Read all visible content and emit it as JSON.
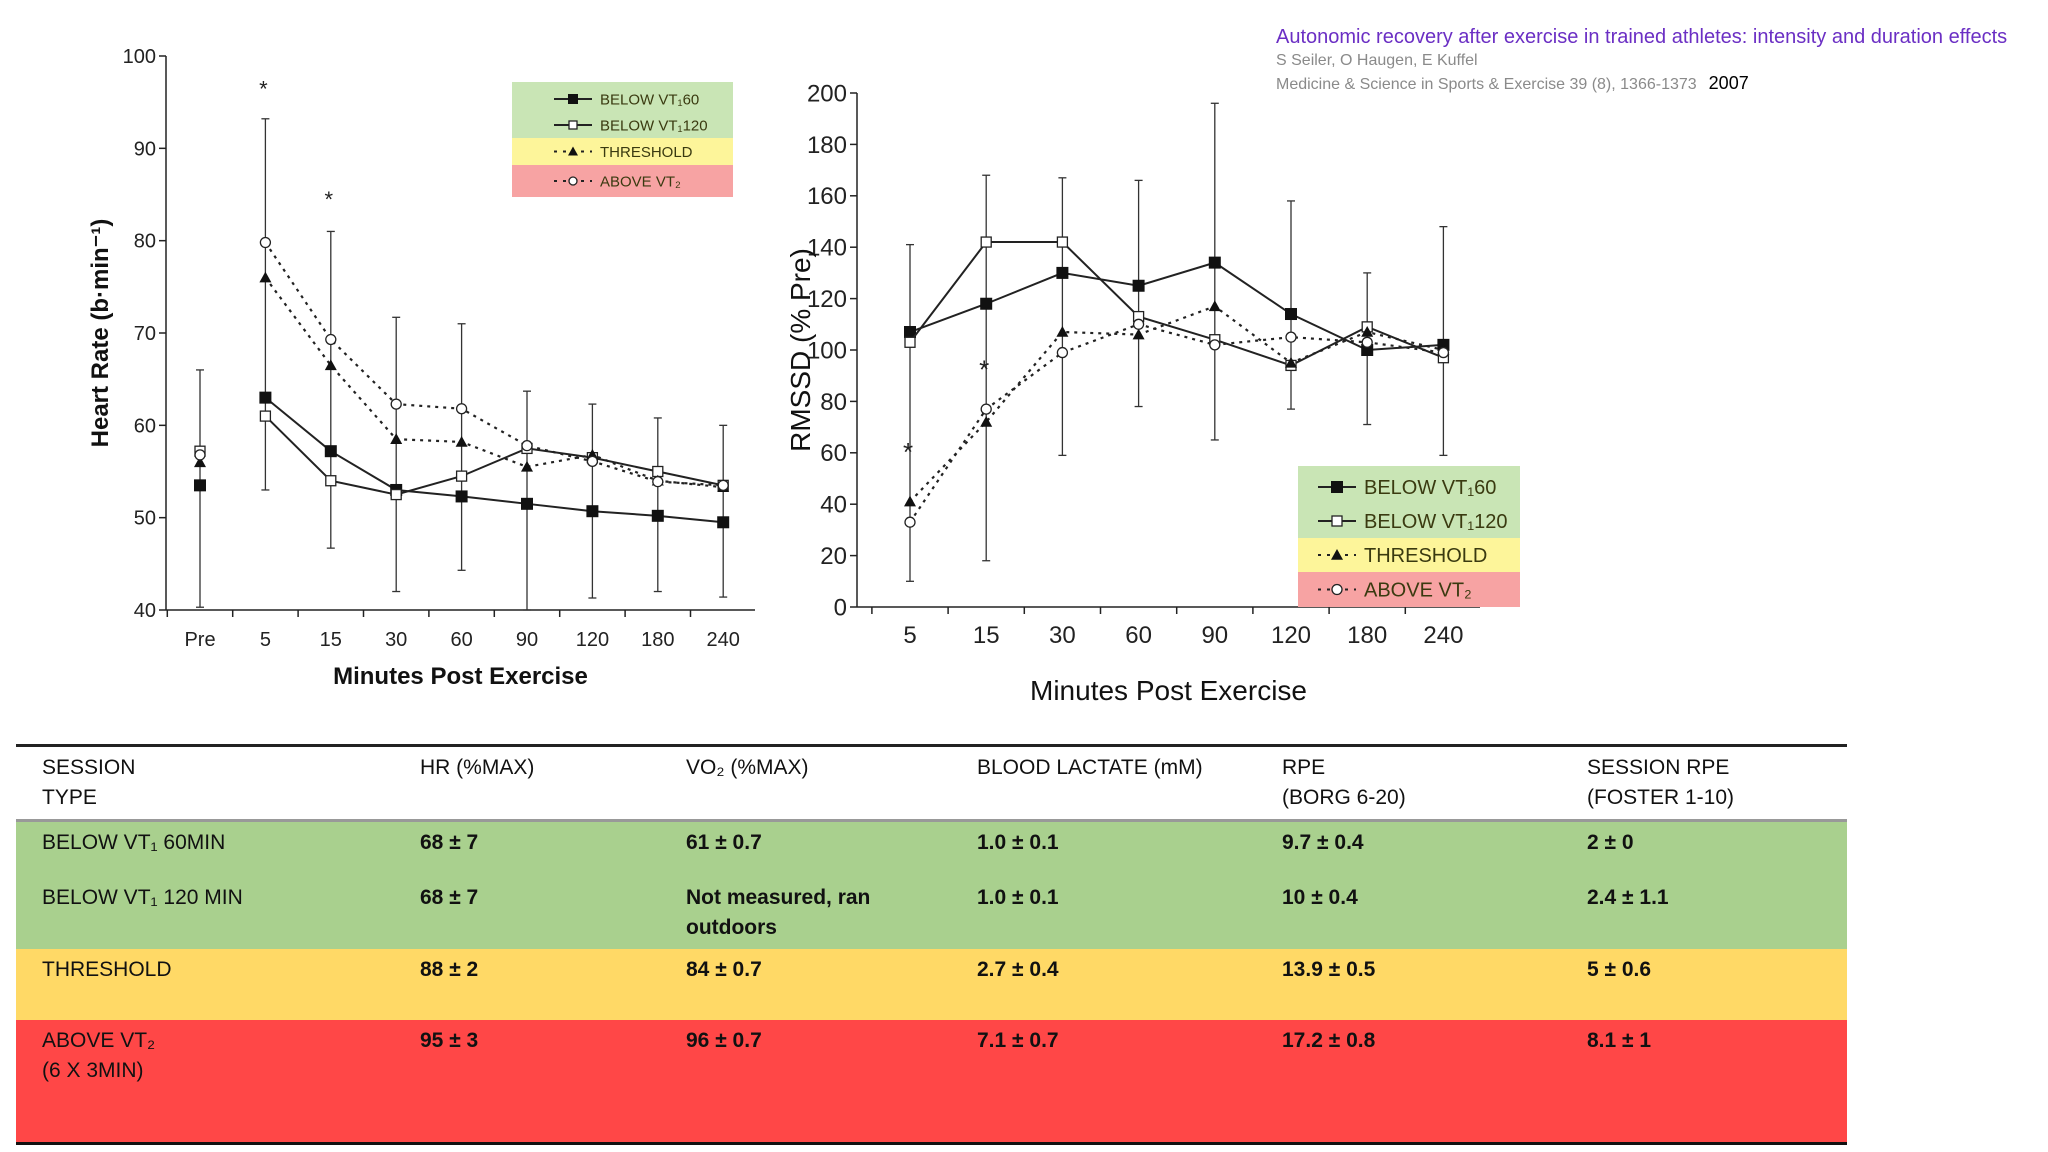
{
  "citation": {
    "title": "Autonomic recovery after exercise in trained athletes: intensity and duration effects",
    "authors": "S Seiler, O Haugen, E Kuffel",
    "journal": "Medicine & Science in Sports & Exercise 39 (8), 1366-1373",
    "year": "2007"
  },
  "colors": {
    "legend_green": "#c9e5b5",
    "legend_yellow": "#fdf59a",
    "legend_red": "#f7a3a3",
    "row_green": "#a9d08e",
    "row_yellow": "#ffd966",
    "row_red": "#ff4747",
    "title": "#6b2fc4"
  },
  "chart_data": [
    {
      "type": "line",
      "ylabel": "Heart Rate (b·min⁻¹)",
      "xlabel": "Minutes Post Exercise",
      "categories": [
        "Pre",
        "5",
        "15",
        "30",
        "60",
        "90",
        "120",
        "180",
        "240"
      ],
      "ylim": [
        40,
        100
      ],
      "yticks": [
        40,
        50,
        60,
        70,
        80,
        90,
        100
      ],
      "legend_position": "top-right",
      "series": [
        {
          "name": "BELOW VT₁60",
          "marker": "filled-square",
          "line": "solid",
          "values": [
            53.5,
            63,
            57.2,
            53,
            52.3,
            51.5,
            50.7,
            50.2,
            49.5
          ]
        },
        {
          "name": "BELOW VT₁120",
          "marker": "open-square",
          "line": "solid",
          "values": [
            57.2,
            61,
            54,
            52.5,
            54.5,
            57.5,
            56.5,
            55,
            53.5
          ]
        },
        {
          "name": "THRESHOLD",
          "marker": "filled-triangle",
          "line": "dotted",
          "values": [
            56,
            76,
            66.5,
            58.5,
            58.2,
            55.5,
            56.8,
            54,
            53.3
          ]
        },
        {
          "name": "ABOVE VT₂",
          "marker": "open-circle",
          "line": "dotted",
          "values": [
            56.8,
            79.8,
            69.3,
            62.3,
            61.8,
            57.8,
            56.1,
            53.9,
            53.5
          ]
        }
      ],
      "error_bars": [
        [
          40.3,
          66
        ],
        [
          53,
          93.2
        ],
        [
          46.7,
          81
        ],
        [
          42,
          71.7
        ],
        [
          44.3,
          71
        ],
        [
          40,
          63.7
        ],
        [
          41.3,
          62.3
        ],
        [
          42,
          60.8
        ],
        [
          41.4,
          60
        ]
      ],
      "significance": [
        {
          "category": "5",
          "y": 96.5,
          "label": "*"
        },
        {
          "category": "15",
          "y": 84.5,
          "label": "*"
        }
      ]
    },
    {
      "type": "line",
      "ylabel": "RMSSD (% Pre)",
      "xlabel": "Minutes Post Exercise",
      "categories": [
        "5",
        "15",
        "30",
        "60",
        "90",
        "120",
        "180",
        "240"
      ],
      "ylim": [
        0,
        200
      ],
      "yticks": [
        0,
        20,
        40,
        60,
        80,
        100,
        120,
        140,
        160,
        180,
        200
      ],
      "legend_position": "bottom-right",
      "series": [
        {
          "name": "BELOW VT₁60",
          "marker": "filled-square",
          "line": "solid",
          "values": [
            107,
            118,
            130,
            125,
            134,
            114,
            100,
            102
          ]
        },
        {
          "name": "BELOW VT₁120",
          "marker": "open-square",
          "line": "solid",
          "values": [
            103,
            142,
            142,
            113,
            104,
            94,
            109,
            97
          ]
        },
        {
          "name": "THRESHOLD",
          "marker": "filled-triangle",
          "line": "dotted",
          "values": [
            41,
            72,
            107,
            106,
            117,
            95,
            107,
            100
          ]
        },
        {
          "name": "ABOVE VT₂",
          "marker": "open-circle",
          "line": "dotted",
          "values": [
            33,
            77,
            99,
            110,
            102,
            105,
            103,
            99
          ]
        }
      ],
      "error_bars": [
        [
          10,
          141
        ],
        [
          18,
          168
        ],
        [
          59,
          167
        ],
        [
          78,
          166
        ],
        [
          65,
          196
        ],
        [
          77,
          158
        ],
        [
          71,
          130
        ],
        [
          59,
          148
        ]
      ],
      "significance": [
        {
          "category": "5",
          "y": 60,
          "label": "*"
        },
        {
          "category": "15",
          "y": 92,
          "label": "*"
        }
      ]
    }
  ],
  "table": {
    "headers": [
      "SESSION\nTYPE",
      "HR (%MAX)",
      "VO₂ (%MAX)",
      "BLOOD LACTATE (mM)",
      "RPE\n(BORG 6-20)",
      "SESSION RPE\n(FOSTER 1-10)"
    ],
    "rows": [
      [
        "BELOW VT₁ 60MIN",
        "68 ± 7",
        "61 ± 0.7",
        "1.0 ± 0.1",
        "9.7 ± 0.4",
        "2 ± 0"
      ],
      [
        "BELOW VT₁ 120 MIN",
        "68 ± 7",
        "Not measured, ran outdoors",
        "1.0 ± 0.1",
        "10 ± 0.4",
        "2.4 ± 1.1"
      ],
      [
        "THRESHOLD",
        "88 ± 2",
        "84 ± 0.7",
        "2.7 ± 0.4",
        "13.9 ± 0.5",
        "5 ± 0.6"
      ],
      [
        "ABOVE VT₂\n(6 X 3MIN)",
        "95 ± 3",
        "96 ± 0.7",
        "7.1 ± 0.7",
        "17.2 ± 0.8",
        "8.1 ± 1"
      ]
    ]
  }
}
